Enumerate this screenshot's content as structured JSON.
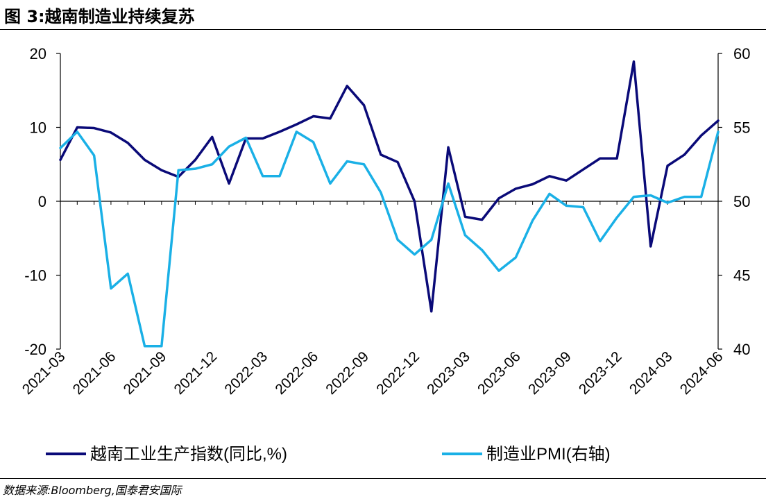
{
  "figure": {
    "title": "图 3:越南制造业持续复苏",
    "source": "数据来源:Bloomberg,国泰君安国际"
  },
  "chart_data": {
    "type": "line",
    "x": [
      "2021-03",
      "2021-04",
      "2021-05",
      "2021-06",
      "2021-07",
      "2021-08",
      "2021-09",
      "2021-10",
      "2021-11",
      "2021-12",
      "2022-01",
      "2022-02",
      "2022-03",
      "2022-04",
      "2022-05",
      "2022-06",
      "2022-07",
      "2022-08",
      "2022-09",
      "2022-10",
      "2022-11",
      "2022-12",
      "2023-01",
      "2023-02",
      "2023-03",
      "2023-04",
      "2023-05",
      "2023-06",
      "2023-07",
      "2023-08",
      "2023-09",
      "2023-10",
      "2023-11",
      "2023-12",
      "2024-01",
      "2024-02",
      "2024-03",
      "2024-04",
      "2024-05",
      "2024-06"
    ],
    "xtick_labels": [
      "2021-03",
      "2021-06",
      "2021-09",
      "2021-12",
      "2022-03",
      "2022-06",
      "2022-09",
      "2022-12",
      "2023-03",
      "2023-06",
      "2023-09",
      "2023-12",
      "2024-03",
      "2024-06"
    ],
    "y_left": {
      "ylim": [
        -20,
        20
      ],
      "ticks": [
        -20,
        -10,
        0,
        10,
        20
      ]
    },
    "y_right": {
      "ylim": [
        40,
        60
      ],
      "ticks": [
        40,
        45,
        50,
        55,
        60
      ]
    },
    "legend_position": "bottom",
    "grid": false,
    "series": [
      {
        "name": "越南工业生产指数(同比,%)",
        "axis": "left",
        "color": "#0a0a78",
        "values": [
          5.6,
          10.0,
          9.9,
          9.3,
          7.9,
          5.6,
          4.2,
          3.3,
          5.6,
          8.7,
          2.4,
          8.5,
          8.5,
          9.4,
          10.4,
          11.5,
          11.2,
          15.6,
          13.0,
          6.3,
          5.3,
          0.0,
          -14.9,
          7.3,
          -2.1,
          -2.5,
          0.4,
          1.7,
          2.3,
          3.4,
          2.8,
          4.3,
          5.8,
          5.8,
          18.9,
          -6.1,
          4.8,
          6.3,
          8.9,
          10.9
        ]
      },
      {
        "name": "制造业PMI(右轴)",
        "axis": "right",
        "color": "#1ab0e6",
        "values": [
          53.6,
          54.7,
          53.1,
          44.1,
          45.1,
          40.2,
          40.2,
          52.1,
          52.2,
          52.5,
          53.7,
          54.3,
          51.7,
          51.7,
          54.7,
          54.0,
          51.2,
          52.7,
          52.5,
          50.6,
          47.4,
          46.4,
          47.4,
          51.2,
          47.7,
          46.7,
          45.3,
          46.2,
          48.7,
          50.5,
          49.7,
          49.6,
          47.3,
          48.9,
          50.3,
          50.4,
          49.9,
          50.3,
          50.3,
          54.7
        ]
      }
    ]
  }
}
